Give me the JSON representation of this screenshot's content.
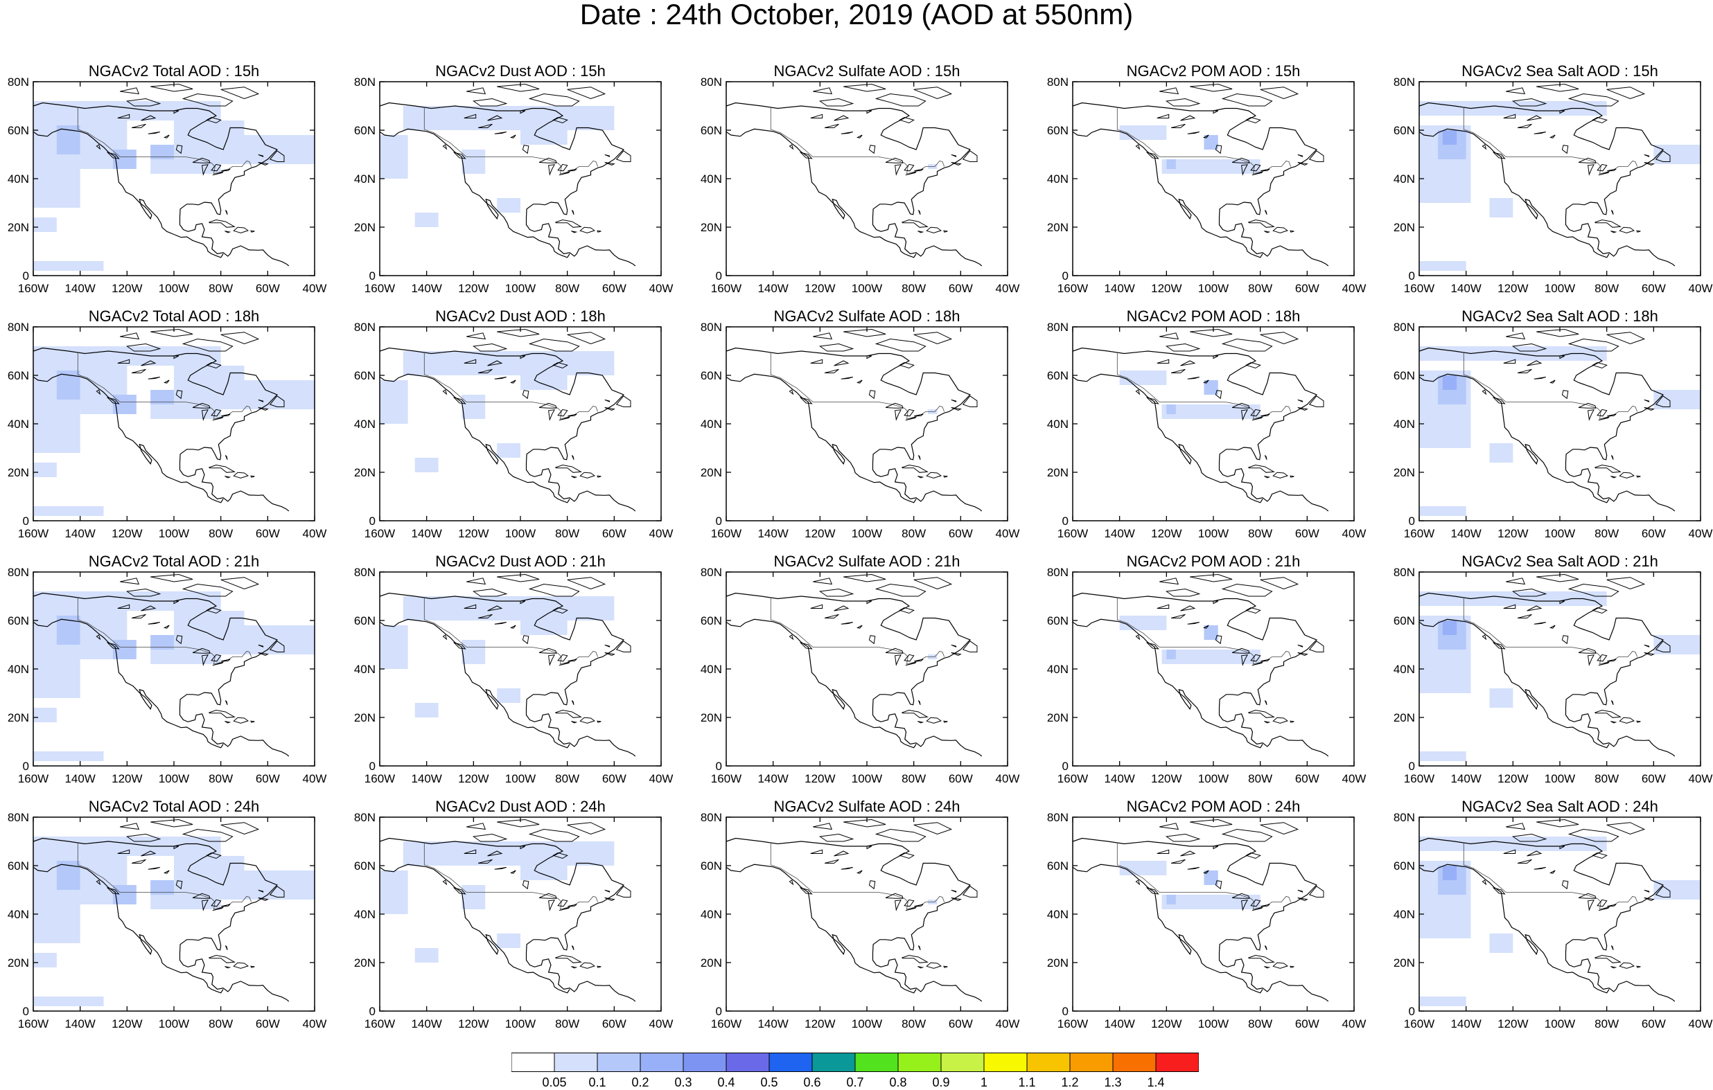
{
  "title": "Date : 24th October, 2019 (AOD at 550nm)",
  "rows": [
    {
      "hour": "15h",
      "panels": [
        "NGACv2 Total AOD : 15h",
        "NGACv2 Dust AOD : 15h",
        "NGACv2 Sulfate AOD : 15h",
        "NGACv2 POM AOD : 15h",
        "NGACv2 Sea Salt AOD : 15h"
      ]
    },
    {
      "hour": "18h",
      "panels": [
        "NGACv2 Total AOD : 18h",
        "NGACv2 Dust AOD : 18h",
        "NGACv2 Sulfate AOD : 18h",
        "NGACv2 POM AOD : 18h",
        "NGACv2 Sea Salt AOD : 18h"
      ]
    },
    {
      "hour": "21h",
      "panels": [
        "NGACv2 Total AOD : 21h",
        "NGACv2 Dust AOD : 21h",
        "NGACv2 Sulfate AOD : 21h",
        "NGACv2 POM AOD : 21h",
        "NGACv2 Sea Salt AOD : 21h"
      ]
    },
    {
      "hour": "24h",
      "panels": [
        "NGACv2 Total AOD : 24h",
        "NGACv2 Dust AOD : 24h",
        "NGACv2 Sulfate AOD : 24h",
        "NGACv2 POM AOD : 24h",
        "NGACv2 Sea Salt  AOD : 24h"
      ]
    }
  ],
  "lat_labels": [
    "80N",
    "60N",
    "40N",
    "20N",
    "0"
  ],
  "lon_labels": [
    "160W",
    "140W",
    "120W",
    "100W",
    "80W",
    "60W",
    "40W"
  ],
  "colorbar": {
    "ticks": [
      "0.05",
      "0.1",
      "0.2",
      "0.3",
      "0.4",
      "0.5",
      "0.6",
      "0.7",
      "0.8",
      "0.9",
      "1",
      "1.1",
      "1.2",
      "1.3",
      "1.4"
    ],
    "colors": [
      "#ffffff",
      "#d4e0fc",
      "#b4c8fa",
      "#98b0f8",
      "#7e94f2",
      "#6a6ae8",
      "#1e64f0",
      "#0a9898",
      "#52e21e",
      "#96f01a",
      "#c8f246",
      "#f8f800",
      "#f8c400",
      "#f89c00",
      "#f87000",
      "#f81e1e"
    ]
  },
  "fill_colors": {
    "light": "#d4e0fc",
    "medium": "#b4c8fa",
    "strong": "#98b0f8"
  }
}
